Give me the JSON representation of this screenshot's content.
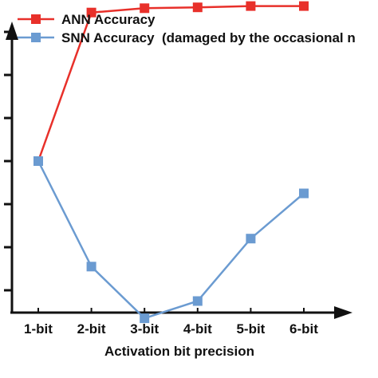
{
  "chart_data": {
    "type": "line",
    "categories": [
      "1-bit",
      "2-bit",
      "3-bit",
      "4-bit",
      "5-bit",
      "6-bit"
    ],
    "series": [
      {
        "name": "ANN Accuracy",
        "color": "#e8302a",
        "marker": "square",
        "values": [
          4.0,
          7.45,
          7.55,
          7.57,
          7.6,
          7.6
        ]
      },
      {
        "name": "SNN Accuracy  (damaged by the occasional n",
        "color": "#6b9bd1",
        "marker": "square",
        "values": [
          4.0,
          1.55,
          0.35,
          0.75,
          2.2,
          3.25
        ]
      }
    ],
    "xlabel": "Activation bit precision",
    "ylabel": "",
    "ylim": [
      0,
      8
    ],
    "grid": false,
    "legend": "top-left"
  }
}
